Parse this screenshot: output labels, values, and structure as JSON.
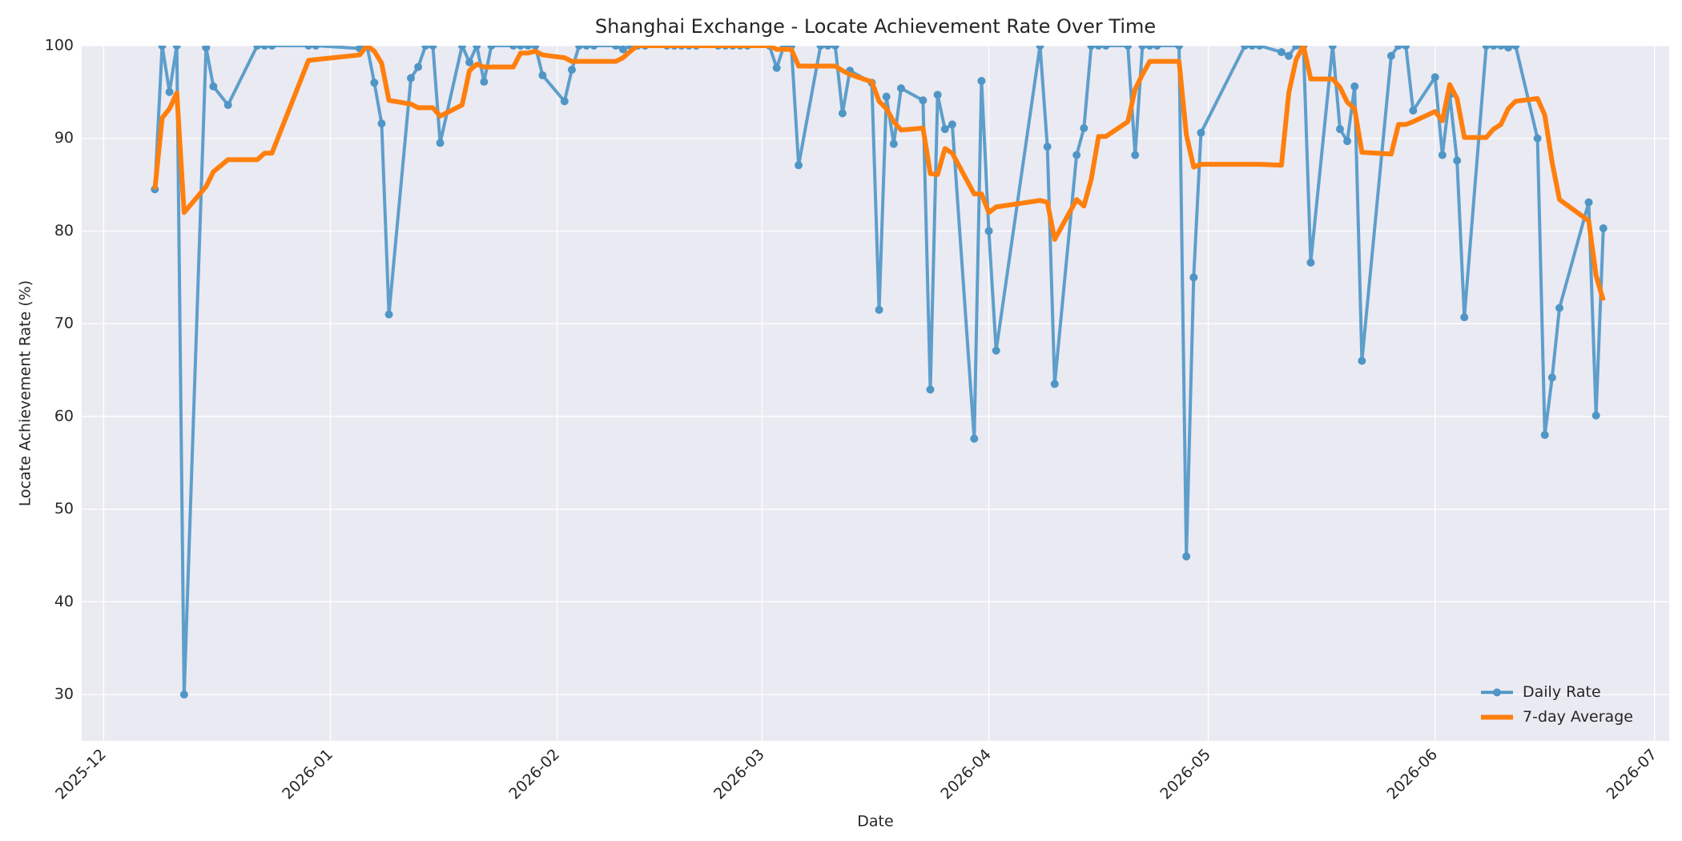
{
  "chart_data": {
    "type": "line",
    "title": "Shanghai Exchange - Locate Achievement Rate Over Time",
    "x_label": "Date",
    "y_label": "Locate Achievement Rate (%)",
    "x": [
      "2025-12-08",
      "2025-12-09",
      "2025-12-10",
      "2025-12-11",
      "2025-12-12",
      "2025-12-15",
      "2025-12-16",
      "2025-12-18",
      "2025-12-22",
      "2025-12-23",
      "2025-12-24",
      "2025-12-29",
      "2025-12-30",
      "2026-01-05",
      "2026-01-06",
      "2026-01-07",
      "2026-01-08",
      "2026-01-09",
      "2026-01-12",
      "2026-01-13",
      "2026-01-14",
      "2026-01-15",
      "2026-01-16",
      "2026-01-19",
      "2026-01-20",
      "2026-01-21",
      "2026-01-22",
      "2026-01-23",
      "2026-01-26",
      "2026-01-27",
      "2026-01-28",
      "2026-01-29",
      "2026-01-30",
      "2026-02-02",
      "2026-02-03",
      "2026-02-04",
      "2026-02-05",
      "2026-02-06",
      "2026-02-09",
      "2026-02-10",
      "2026-02-11",
      "2026-02-12",
      "2026-02-13",
      "2026-02-16",
      "2026-02-17",
      "2026-02-18",
      "2026-02-19",
      "2026-02-20",
      "2026-02-23",
      "2026-02-24",
      "2026-02-25",
      "2026-02-26",
      "2026-02-27",
      "2026-03-02",
      "2026-03-03",
      "2026-03-04",
      "2026-03-05",
      "2026-03-06",
      "2026-03-09",
      "2026-03-10",
      "2026-03-11",
      "2026-03-12",
      "2026-03-13",
      "2026-03-16",
      "2026-03-17",
      "2026-03-18",
      "2026-03-19",
      "2026-03-20",
      "2026-03-23",
      "2026-03-24",
      "2026-03-25",
      "2026-03-26",
      "2026-03-27",
      "2026-03-30",
      "2026-03-31",
      "2026-04-01",
      "2026-04-02",
      "2026-04-08",
      "2026-04-09",
      "2026-04-10",
      "2026-04-13",
      "2026-04-14",
      "2026-04-15",
      "2026-04-16",
      "2026-04-17",
      "2026-04-20",
      "2026-04-21",
      "2026-04-22",
      "2026-04-23",
      "2026-04-24",
      "2026-04-27",
      "2026-04-28",
      "2026-04-29",
      "2026-04-30",
      "2026-05-06",
      "2026-05-07",
      "2026-05-08",
      "2026-05-11",
      "2026-05-12",
      "2026-05-13",
      "2026-05-14",
      "2026-05-15",
      "2026-05-18",
      "2026-05-19",
      "2026-05-20",
      "2026-05-21",
      "2026-05-22",
      "2026-05-26",
      "2026-05-27",
      "2026-05-28",
      "2026-05-29",
      "2026-06-01",
      "2026-06-02",
      "2026-06-03",
      "2026-06-04",
      "2026-06-05",
      "2026-06-08",
      "2026-06-09",
      "2026-06-10",
      "2026-06-11",
      "2026-06-12",
      "2026-06-15",
      "2026-06-16",
      "2026-06-17",
      "2026-06-18",
      "2026-06-22",
      "2026-06-23",
      "2026-06-24"
    ],
    "series": [
      {
        "name": "Daily Rate",
        "color": "#4f96c6",
        "marker": true,
        "values": [
          84.5,
          100,
          95,
          100,
          30,
          99.8,
          95.6,
          93.6,
          100,
          100,
          100,
          100,
          100,
          99.7,
          100,
          96,
          91.6,
          71,
          96.5,
          97.7,
          100,
          100,
          89.5,
          100,
          98.2,
          100,
          96.1,
          100,
          100,
          100,
          100,
          100,
          96.8,
          94,
          97.4,
          100,
          100,
          100,
          100,
          99.6,
          100,
          100,
          100,
          100,
          100,
          100,
          100,
          100,
          100,
          100,
          100,
          100,
          100,
          100,
          97.6,
          100,
          100,
          87.1,
          100,
          100,
          100,
          92.7,
          97.3,
          96,
          71.5,
          94.5,
          89.4,
          95.4,
          94.1,
          62.9,
          94.7,
          91,
          91.5,
          57.6,
          96.2,
          80,
          67.1,
          100,
          89.1,
          63.5,
          88.2,
          91.1,
          100,
          100,
          100,
          100,
          88.2,
          100,
          100,
          100,
          100,
          44.9,
          75,
          90.6,
          100,
          100,
          100,
          99.3,
          98.9,
          100,
          100,
          76.6,
          100,
          91,
          89.7,
          95.6,
          66,
          98.9,
          100,
          100,
          93,
          96.6,
          88.2,
          94.7,
          87.6,
          70.7,
          100,
          100,
          100,
          99.8,
          100,
          90,
          58,
          64.2,
          71.7,
          83.1,
          60.1,
          80.3
        ]
      },
      {
        "name": "7-day Average",
        "color": "#ff7f0e",
        "marker": false,
        "values": [
          84.5,
          92.2,
          93.2,
          94.9,
          82,
          84.8,
          86.4,
          87.7,
          87.7,
          88.4,
          88.4,
          98.4,
          98.5,
          99,
          100,
          99.4,
          98.1,
          94.1,
          93.7,
          93.3,
          93.3,
          93.3,
          92.4,
          93.6,
          97.3,
          98,
          97.7,
          97.7,
          97.7,
          99.2,
          99.2,
          99.4,
          99,
          98.7,
          98.3,
          98.3,
          98.3,
          98.3,
          98.3,
          98.7,
          99.4,
          100,
          100,
          100,
          100,
          100,
          100,
          100,
          100,
          100,
          100,
          100,
          100,
          100,
          99.6,
          99.6,
          99.6,
          97.8,
          97.8,
          97.8,
          97.8,
          97.3,
          96.9,
          96.1,
          94,
          93.2,
          91.8,
          90.9,
          91.1,
          86.2,
          86.1,
          88.9,
          88.4,
          84,
          84,
          82,
          82.6,
          83.3,
          83.1,
          79.1,
          83.4,
          82.7,
          85.6,
          90.2,
          90.2,
          91.8,
          95.3,
          96.9,
          98.3,
          98.3,
          98.3,
          90.4,
          86.9,
          87.2,
          87.2,
          87.2,
          87.2,
          87.1,
          94.9,
          98.5,
          100,
          96.4,
          96.4,
          95.5,
          93.9,
          93.2,
          88.5,
          88.3,
          91.5,
          91.5,
          91.8,
          92.9,
          91.9,
          95.8,
          94.3,
          90.1,
          90.1,
          91,
          91.5,
          93.2,
          94,
          94.3,
          92.5,
          87.4,
          83.4,
          81.1,
          75.2,
          72.5
        ]
      }
    ],
    "xlim": [
      "2025-11-28",
      "2026-07-03"
    ],
    "xticks": [
      {
        "value": "2025-12-01",
        "label": "2025-12"
      },
      {
        "value": "2026-01-01",
        "label": "2026-01"
      },
      {
        "value": "2026-02-01",
        "label": "2026-02"
      },
      {
        "value": "2026-03-01",
        "label": "2026-03"
      },
      {
        "value": "2026-04-01",
        "label": "2026-04"
      },
      {
        "value": "2026-05-01",
        "label": "2026-05"
      },
      {
        "value": "2026-06-01",
        "label": "2026-06"
      },
      {
        "value": "2026-07-01",
        "label": "2026-07"
      }
    ],
    "ylim": [
      25,
      100
    ],
    "yticks": [
      30,
      40,
      50,
      60,
      70,
      80,
      90,
      100
    ],
    "grid": true,
    "legend": "lower right"
  }
}
